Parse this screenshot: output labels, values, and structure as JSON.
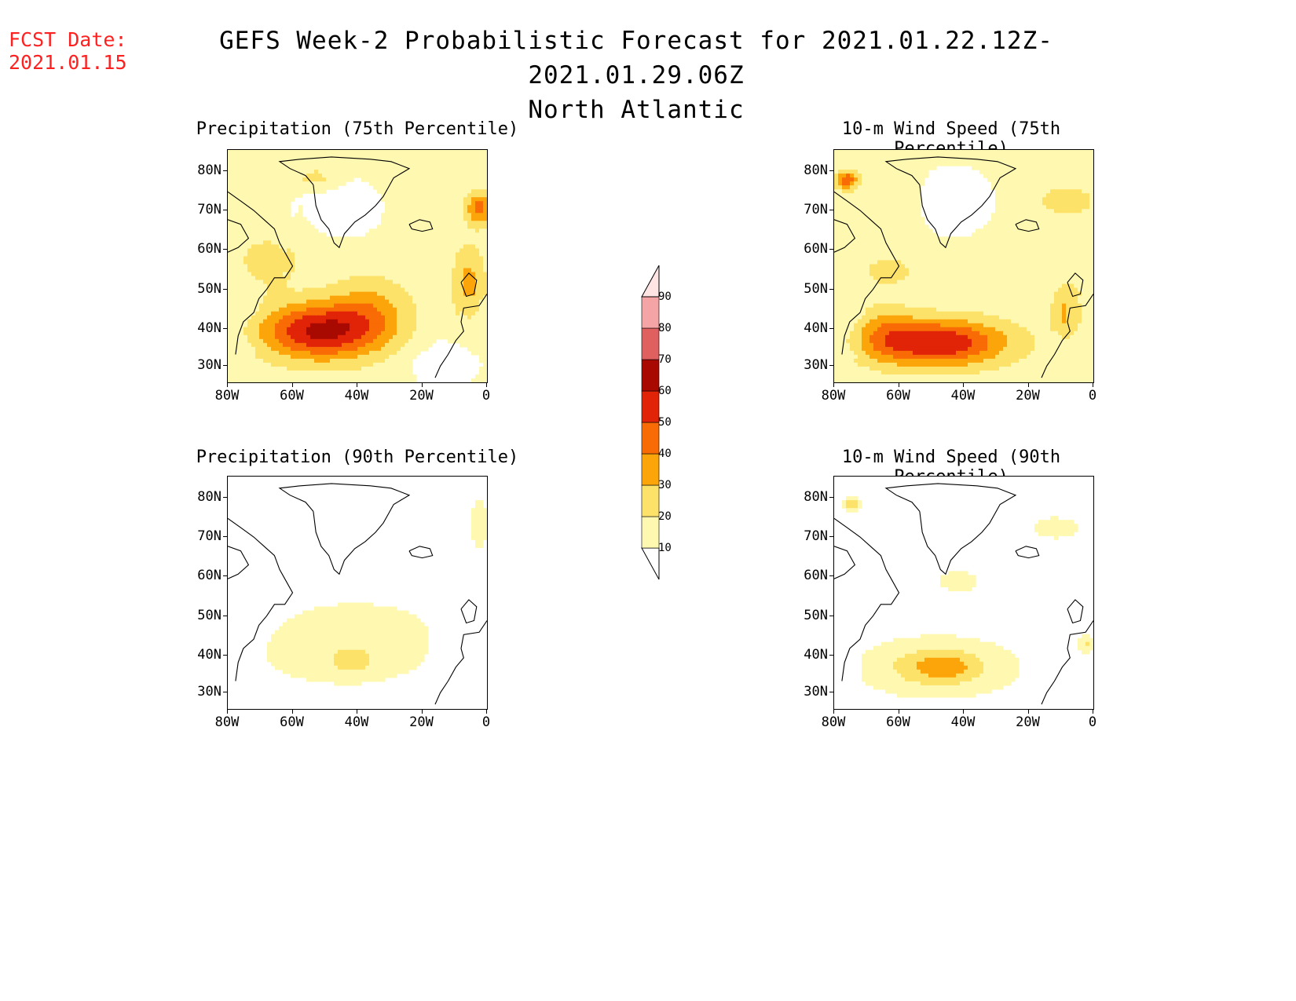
{
  "header": {
    "fcst_label": "FCST Date:",
    "fcst_date": "2021.01.15",
    "title": "GEFS Week-2 Probabilistic Forecast for 2021.01.22.12Z-2021.01.29.06Z",
    "subtitle": "North Atlantic"
  },
  "panels": [
    {
      "id": "precip75",
      "title": "Precipitation (75th Percentile)"
    },
    {
      "id": "wind75",
      "title": "10-m Wind Speed (75th Percentile)"
    },
    {
      "id": "precip90",
      "title": "Precipitation (90th Percentile)"
    },
    {
      "id": "wind90",
      "title": "10-m Wind Speed (90th Percentile)"
    }
  ],
  "axes": {
    "lat_labels": [
      "80N",
      "70N",
      "60N",
      "50N",
      "40N",
      "30N"
    ],
    "lon_labels": [
      "80W",
      "60W",
      "40W",
      "20W",
      "0"
    ]
  },
  "colorbar": {
    "levels": [
      "10",
      "20",
      "30",
      "40",
      "50",
      "60",
      "70",
      "80",
      "90"
    ],
    "colors": [
      "#fff8b0",
      "#fde26a",
      "#fca50a",
      "#f96b05",
      "#e12308",
      "#a80a02",
      "#e06060",
      "#f4a4a4",
      "#ffe4e4"
    ]
  }
}
